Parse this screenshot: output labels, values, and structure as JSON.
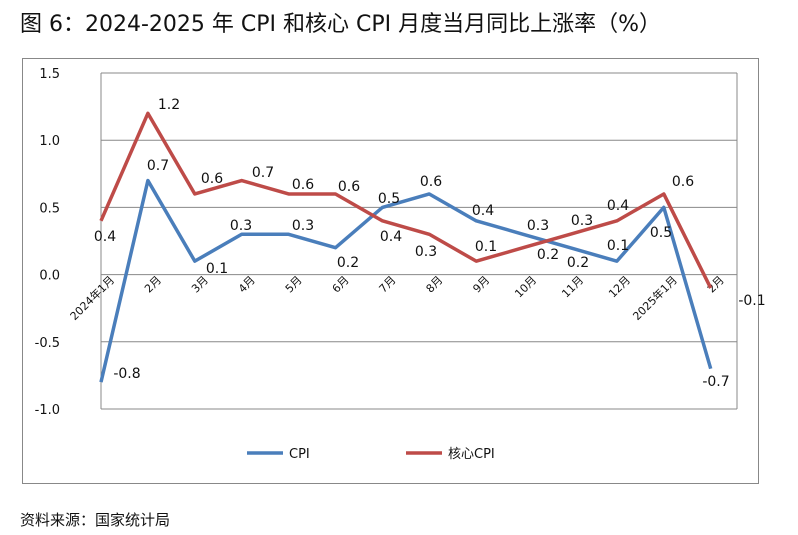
{
  "title": "图 6：2024-2025 年 CPI 和核心 CPI 月度当月同比上涨率（%）",
  "source": "资料来源：国家统计局",
  "chart_data": {
    "type": "line",
    "categories": [
      "2024年1月",
      "2月",
      "3月",
      "4月",
      "5月",
      "6月",
      "7月",
      "8月",
      "9月",
      "10月",
      "11月",
      "12月",
      "2025年1月",
      "2月"
    ],
    "ylim": [
      -1.0,
      1.5
    ],
    "yticks": [
      "-1.0",
      "-0.5",
      "0.0",
      "0.5",
      "1.0",
      "1.5"
    ],
    "grid": true,
    "legend": "bottom",
    "series": [
      {
        "name": "CPI",
        "color": "#4a7ebb",
        "values": [
          -0.8,
          0.7,
          0.1,
          0.3,
          0.3,
          0.2,
          0.5,
          0.6,
          0.4,
          0.3,
          0.2,
          0.1,
          0.5,
          -0.7
        ]
      },
      {
        "name": "核心CPI",
        "color": "#be4b48",
        "values": [
          0.4,
          1.2,
          0.6,
          0.7,
          0.6,
          0.6,
          0.4,
          0.3,
          0.1,
          0.2,
          0.3,
          0.4,
          0.6,
          -0.1
        ]
      }
    ]
  }
}
